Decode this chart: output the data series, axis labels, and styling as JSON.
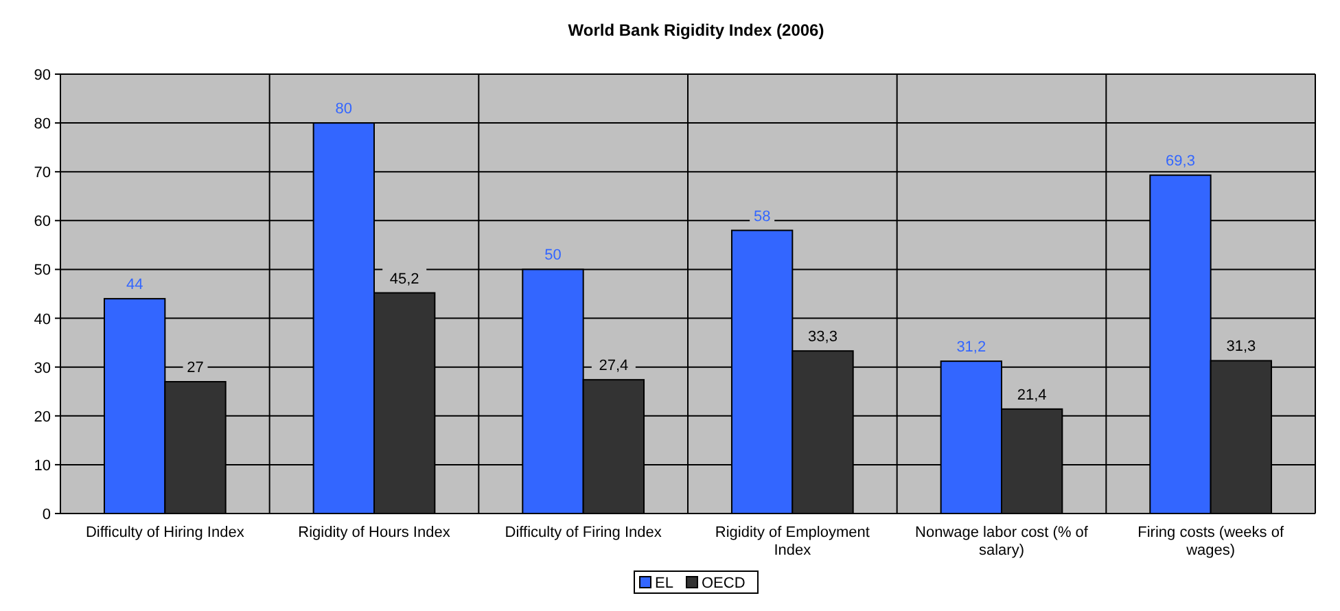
{
  "chart_data": {
    "type": "bar",
    "title": "World Bank Rigidity Index (2006)",
    "categories": [
      "Difficulty of Hiring Index",
      "Rigidity of Hours Index",
      "Difficulty of Firing Index",
      "Rigidity of Employment Index",
      "Nonwage labor cost (% of salary)",
      "Firing costs (weeks of wages)"
    ],
    "series": [
      {
        "name": "EL",
        "color": "#3366ff",
        "values": [
          44,
          80,
          50,
          58,
          31.2,
          69.3
        ],
        "value_labels": [
          "44",
          "80",
          "50",
          "58",
          "31,2",
          "69,3"
        ]
      },
      {
        "name": "OECD",
        "color": "#333333",
        "values": [
          27,
          45.2,
          27.4,
          33.3,
          21.4,
          31.3
        ],
        "value_labels": [
          "27",
          "45,2",
          "27,4",
          "33,3",
          "21,4",
          "31,3"
        ]
      }
    ],
    "ylim": [
      0,
      90
    ],
    "yticks": [
      0,
      10,
      20,
      30,
      40,
      50,
      60,
      70,
      80,
      90
    ],
    "grid": true,
    "legend": "bottom"
  }
}
